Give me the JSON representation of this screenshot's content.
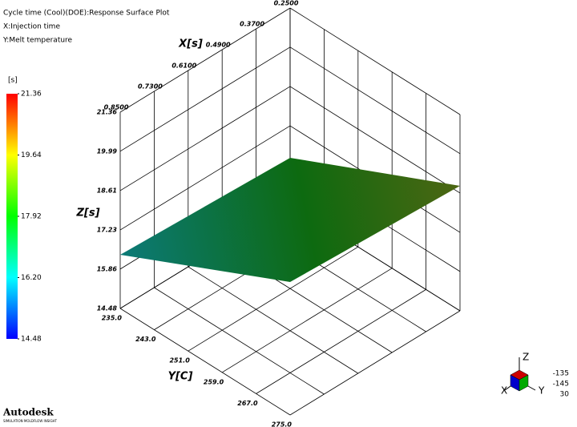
{
  "chart_data": {
    "type": "surface",
    "title": "Cycle time (Cool)(DOE):Response Surface Plot",
    "axis_captions": [
      "X:Injection time",
      "Y:Melt temperature"
    ],
    "xlabel": "X[s]",
    "ylabel": "Y[C]",
    "zlabel": "Z[s]",
    "xlim": [
      0.25,
      0.85
    ],
    "xticks": [
      {
        "value": 0.25,
        "label": "0.2500"
      },
      {
        "value": 0.37,
        "label": "0.3700"
      },
      {
        "value": 0.49,
        "label": "0.4900"
      },
      {
        "value": 0.61,
        "label": "0.6100"
      },
      {
        "value": 0.73,
        "label": "0.7300"
      },
      {
        "value": 0.85,
        "label": "0.8500"
      }
    ],
    "ylim": [
      235,
      275
    ],
    "yticks": [
      {
        "value": 235,
        "label": "235.0"
      },
      {
        "value": 243,
        "label": "243.0"
      },
      {
        "value": 251,
        "label": "251.0"
      },
      {
        "value": 259,
        "label": "259.0"
      },
      {
        "value": 267,
        "label": "267.0"
      },
      {
        "value": 275,
        "label": "275.0"
      }
    ],
    "zlim": [
      14.48,
      21.36
    ],
    "zticks": [
      14.48,
      15.86,
      17.23,
      18.61,
      19.99,
      21.36
    ],
    "surface": {
      "x": [
        0.25,
        0.85
      ],
      "y": [
        235,
        275
      ],
      "z": [
        [
          16.11,
          18.86
        ],
        [
          16.36,
          19.14
        ]
      ]
    },
    "colorbar": {
      "unit": "[s]",
      "lim": [
        14.48,
        21.36
      ],
      "ticks": [
        14.48,
        {
          "value": 16.2,
          "label": "16.20"
        },
        17.92,
        19.64,
        21.36
      ]
    },
    "grid": true
  },
  "view": {
    "axes": [
      "X",
      "Y",
      "Z"
    ],
    "angles": [
      -135,
      -145,
      30
    ]
  },
  "logo": {
    "brand": "Autodesk",
    "product": "SIMULATION MOLDFLOW INSIGHT"
  }
}
